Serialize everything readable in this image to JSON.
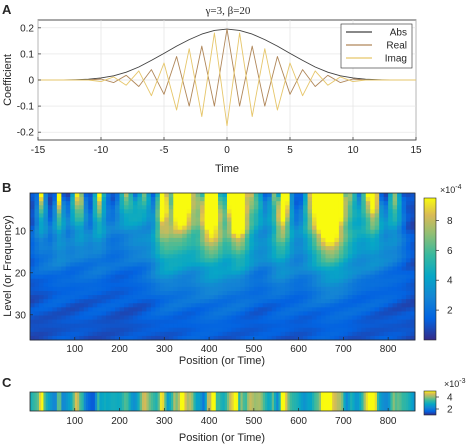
{
  "chart_data": [
    {
      "panel_label": "A",
      "type": "line",
      "title": "γ=3, β=20",
      "xlabel": "Time",
      "ylabel": "Coefficient",
      "xlim": [
        -15,
        15
      ],
      "ylim": [
        -0.23,
        0.23
      ],
      "xticks": [
        "-15",
        "-10",
        "-5",
        "0",
        "5",
        "10",
        "15"
      ],
      "xtick_values": [
        -15,
        -10,
        -5,
        0,
        5,
        10,
        15
      ],
      "yticks": [
        "0.2",
        "0.1",
        "0",
        "-0.1",
        "-0.2"
      ],
      "ytick_values": [
        0.2,
        0.1,
        0,
        -0.1,
        -0.2
      ],
      "grid": true,
      "legend_position": "top-right",
      "x": [
        -15,
        -14,
        -13,
        -12,
        -11,
        -10,
        -9,
        -8,
        -7,
        -6,
        -5,
        -4,
        -3,
        -2,
        -1,
        0,
        1,
        2,
        3,
        4,
        5,
        6,
        7,
        8,
        9,
        10,
        11,
        12,
        13,
        14,
        15
      ],
      "series": [
        {
          "name": "Abs",
          "color": "#404040",
          "values": [
            0.0,
            0.0,
            0.0,
            0.001,
            0.003,
            0.008,
            0.016,
            0.03,
            0.05,
            0.075,
            0.102,
            0.13,
            0.155,
            0.176,
            0.19,
            0.195,
            0.19,
            0.176,
            0.155,
            0.13,
            0.102,
            0.075,
            0.05,
            0.03,
            0.016,
            0.008,
            0.003,
            0.001,
            0.0,
            0.0,
            0.0
          ]
        },
        {
          "name": "Real",
          "color": "#b0875a",
          "values": [
            0.0,
            0.0,
            0.0,
            0.0,
            0.0,
            0.004,
            -0.01,
            0.018,
            -0.025,
            0.04,
            -0.055,
            0.09,
            -0.1,
            0.13,
            -0.1,
            0.195,
            -0.1,
            0.13,
            -0.1,
            0.09,
            -0.055,
            0.04,
            -0.025,
            0.018,
            -0.01,
            0.004,
            0.0,
            0.0,
            0.0,
            0.0,
            0.0
          ]
        },
        {
          "name": "Imag",
          "color": "#e6c66a",
          "values": [
            0.0,
            0.0,
            0.0,
            0.0,
            0.0,
            -0.006,
            0.012,
            -0.02,
            0.035,
            -0.06,
            0.065,
            -0.115,
            0.12,
            -0.14,
            0.18,
            -0.175,
            0.18,
            -0.14,
            0.12,
            -0.115,
            0.065,
            -0.06,
            0.035,
            -0.02,
            0.012,
            -0.006,
            0.0,
            0.0,
            0.0,
            0.0,
            0.0
          ]
        }
      ]
    },
    {
      "panel_label": "B",
      "type": "heatmap",
      "xlabel": "Position (or Time)",
      "ylabel": "Level (or Frequency)",
      "xlim": [
        0,
        860
      ],
      "ylim": [
        1,
        36
      ],
      "xticks": [
        "100",
        "200",
        "300",
        "400",
        "500",
        "600",
        "700",
        "800"
      ],
      "xtick_values": [
        100,
        200,
        300,
        400,
        500,
        600,
        700,
        800
      ],
      "yticks": [
        "10",
        "20",
        "30"
      ],
      "ytick_values": [
        10,
        20,
        30
      ],
      "colorbar_exponent": "×10",
      "colorbar_exponent_power": "-4",
      "colorbar_ticks": [
        "8",
        "6",
        "4",
        "2"
      ],
      "colorbar_tick_values": [
        8,
        6,
        4,
        2
      ],
      "colorbar_range": [
        0,
        9.5
      ],
      "colormap": "parula"
    },
    {
      "panel_label": "C",
      "type": "heatmap",
      "xlabel": "Position (or Time)",
      "xlim": [
        0,
        860
      ],
      "xticks": [
        "100",
        "200",
        "300",
        "400",
        "500",
        "600",
        "700",
        "800"
      ],
      "xtick_values": [
        100,
        200,
        300,
        400,
        500,
        600,
        700,
        800
      ],
      "colorbar_exponent": "×10",
      "colorbar_exponent_power": "-3",
      "colorbar_ticks": [
        "4",
        "2"
      ],
      "colorbar_tick_values": [
        4,
        2
      ],
      "colorbar_range": [
        1,
        5
      ],
      "colormap": "parula"
    }
  ]
}
